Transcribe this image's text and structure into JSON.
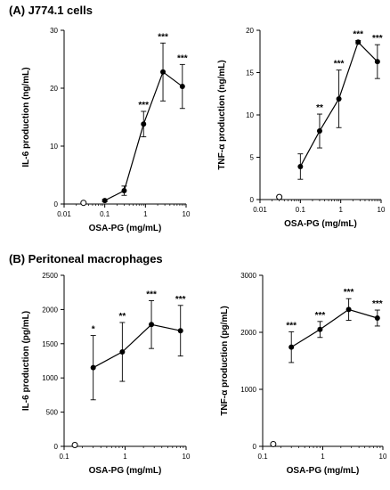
{
  "sections": {
    "a_title": "(A) J774.1 cells",
    "b_title": "(B) Peritoneal macrophages"
  },
  "chart_data": [
    {
      "type": "scatter",
      "panel": "A-left",
      "xlabel": "OSA-PG (mg/mL)",
      "ylabel": "IL-6 production (ng/mL)",
      "xscale": "log",
      "xlim": [
        0.01,
        10
      ],
      "xticks": [
        0.01,
        0.1,
        1,
        10
      ],
      "xtick_labels": [
        "0.01",
        "0.1",
        "1",
        "10"
      ],
      "ylim": [
        0,
        30
      ],
      "yticks": [
        0,
        10,
        20,
        30
      ],
      "control": {
        "x": 0.03,
        "y": 0.2
      },
      "series": [
        {
          "x": [
            0.1,
            0.3,
            0.9,
            2.7,
            8.1
          ],
          "y": [
            0.6,
            2.3,
            13.8,
            22.8,
            20.3
          ],
          "err": [
            0.2,
            0.8,
            2.2,
            5.0,
            3.8
          ],
          "sig": [
            "",
            "",
            "***",
            "***",
            "***"
          ]
        }
      ]
    },
    {
      "type": "scatter",
      "panel": "A-right",
      "xlabel": "OSA-PG (mg/mL)",
      "ylabel": "TNF-α production (ng/mL)",
      "xscale": "log",
      "xlim": [
        0.01,
        10
      ],
      "xticks": [
        0.01,
        0.1,
        1,
        10
      ],
      "xtick_labels": [
        "0.01",
        "0.1",
        "1",
        "10"
      ],
      "ylim": [
        0,
        20
      ],
      "yticks": [
        0,
        5,
        10,
        15,
        20
      ],
      "control": {
        "x": 0.03,
        "y": 0.3
      },
      "series": [
        {
          "x": [
            0.1,
            0.3,
            0.9,
            2.7,
            8.1
          ],
          "y": [
            3.9,
            8.1,
            11.9,
            18.6,
            16.3
          ],
          "err": [
            1.5,
            2.0,
            3.4,
            0.2,
            2.0
          ],
          "sig": [
            "",
            "**",
            "***",
            "***",
            "***"
          ]
        }
      ]
    },
    {
      "type": "scatter",
      "panel": "B-left",
      "xlabel": "OSA-PG (mg/mL)",
      "ylabel": "IL-6 production (pg/mL)",
      "xscale": "log",
      "xlim": [
        0.1,
        10
      ],
      "xticks": [
        0.1,
        1,
        10
      ],
      "xtick_labels": [
        "0.1",
        "1",
        "10"
      ],
      "ylim": [
        0,
        2500
      ],
      "yticks": [
        0,
        500,
        1000,
        1500,
        2000,
        2500
      ],
      "control": {
        "x": 0.15,
        "y": 20
      },
      "series": [
        {
          "x": [
            0.3,
            0.9,
            2.7,
            8.1
          ],
          "y": [
            1150,
            1380,
            1780,
            1690
          ],
          "err": [
            470,
            430,
            350,
            370
          ],
          "sig": [
            "*",
            "**",
            "***",
            "***"
          ]
        }
      ]
    },
    {
      "type": "scatter",
      "panel": "B-right",
      "xlabel": "OSA-PG (mg/mL)",
      "ylabel": "TNF-α production (pg/mL)",
      "xscale": "log",
      "xlim": [
        0.1,
        10
      ],
      "xticks": [
        0.1,
        1,
        10
      ],
      "xtick_labels": [
        "0.1",
        "1",
        "10"
      ],
      "ylim": [
        0,
        3000
      ],
      "yticks": [
        0,
        1000,
        2000,
        3000
      ],
      "control": {
        "x": 0.15,
        "y": 40
      },
      "series": [
        {
          "x": [
            0.3,
            0.9,
            2.7,
            8.1
          ],
          "y": [
            1740,
            2050,
            2400,
            2250
          ],
          "err": [
            270,
            140,
            190,
            140
          ],
          "sig": [
            "***",
            "***",
            "***",
            "***"
          ]
        }
      ]
    }
  ]
}
